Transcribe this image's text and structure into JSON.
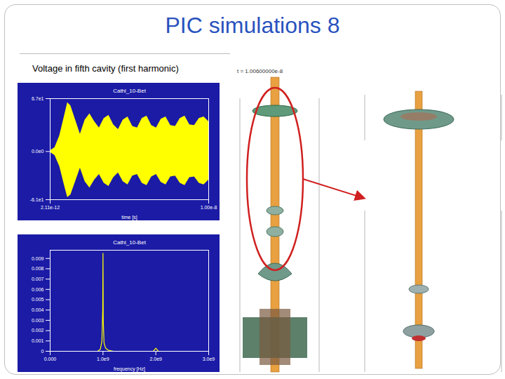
{
  "slide": {
    "title": "PIC simulations 8",
    "subtitle": "Voltage in fifth cavity (first harmonic)",
    "render_label": "t = 1.00600000e-8"
  },
  "chart_data": [
    {
      "type": "area",
      "title": "Cathl_10-Bet",
      "x_label": "time [s]",
      "color": "#ffff00",
      "x": [
        2.11e-12,
        3e-10,
        6e-10,
        9e-10,
        1.1e-09,
        1.3e-09,
        1.6e-09,
        1.9e-09,
        2.2e-09,
        2.5e-09,
        2.8e-09,
        3.1e-09,
        3.4e-09,
        3.7e-09,
        4e-09,
        4.3e-09,
        4.6e-09,
        4.9e-09,
        5.2e-09,
        5.5e-09,
        5.8e-09,
        6.1e-09,
        6.4e-09,
        6.7e-09,
        7e-09,
        7.3e-09,
        7.6e-09,
        7.9e-09,
        8.2e-09,
        8.5e-09,
        8.8e-09,
        9.1e-09,
        9.4e-09,
        9.7e-09,
        1e-08
      ],
      "high": [
        1,
        5,
        20,
        45,
        62,
        58,
        40,
        22,
        40,
        48,
        38,
        30,
        42,
        46,
        34,
        28,
        40,
        44,
        32,
        30,
        42,
        45,
        33,
        30,
        41,
        44,
        33,
        32,
        42,
        45,
        34,
        33,
        42,
        44,
        38
      ],
      "low": [
        -1,
        -5,
        -19,
        -43,
        -58,
        -55,
        -38,
        -21,
        -38,
        -46,
        -36,
        -29,
        -40,
        -44,
        -33,
        -27,
        -38,
        -42,
        -31,
        -29,
        -40,
        -43,
        -32,
        -29,
        -39,
        -42,
        -32,
        -31,
        -40,
        -43,
        -33,
        -32,
        -40,
        -42,
        -36
      ],
      "xlim": [
        2.11e-12,
        1e-08
      ],
      "xticks": [
        {
          "value": 2.11e-12,
          "label": "2.11e-12"
        },
        {
          "value": 1e-08,
          "label": "1.00e-8"
        }
      ],
      "ylim": [
        -61,
        67
      ],
      "yticks": [
        {
          "value": -61,
          "label": "-6.1e1"
        },
        {
          "value": 0,
          "label": "0.0e0"
        },
        {
          "value": 67,
          "label": "6.7e1"
        }
      ]
    },
    {
      "type": "line",
      "title": "Cathl_10-Bet",
      "x_label": "frequency [Hz]",
      "color": "#ffff00",
      "x": [
        0,
        900000000.0,
        950000000.0,
        980000000.0,
        995000000.0,
        1000000000.0,
        1005000000.0,
        1020000000.0,
        1050000000.0,
        1100000000.0,
        1200000000.0,
        1950000000.0,
        2000000000.0,
        2050000000.0,
        3000000000.0
      ],
      "values": [
        0,
        0,
        0.0002,
        0.001,
        0.004,
        0.0095,
        0.003,
        0.0008,
        0.0003,
        0.0001,
        0,
        0,
        0.0003,
        0,
        0
      ],
      "xlim": [
        0,
        3000000000.0
      ],
      "xticks": [
        {
          "value": 0,
          "label": "0.000"
        },
        {
          "value": 1000000000.0,
          "label": "1.0e9"
        },
        {
          "value": 2000000000.0,
          "label": "2.0e9"
        },
        {
          "value": 3000000000.0,
          "label": "3.0e9"
        }
      ],
      "ylim": [
        0,
        0.0098
      ],
      "yticks": [
        0,
        0.001,
        0.002,
        0.003,
        0.004,
        0.005,
        0.006,
        0.007,
        0.008,
        0.009
      ]
    }
  ]
}
